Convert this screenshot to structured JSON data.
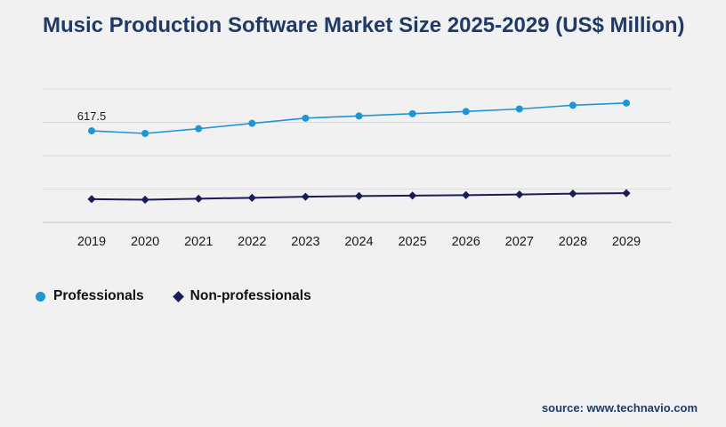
{
  "page": {
    "title": "Music Production Software Market Size 2025-2029 (US$ Million)",
    "source": "source: www.technavio.com"
  },
  "colors": {
    "background": "#f1f1f1",
    "title_text": "#1f3a68",
    "gridline": "#d9d9d9",
    "axis_line": "#c2c2c2",
    "axis_label_text": "#1a1a1a",
    "professionals": "#2095d3",
    "non_professionals": "#1b1c57"
  },
  "chart_data": {
    "type": "line",
    "title": "Music Production Software Market Size 2025-2029 (US$ Million)",
    "xlabel": "",
    "ylabel": "",
    "categories": [
      "2019",
      "2020",
      "2021",
      "2022",
      "2023",
      "2024",
      "2025",
      "2026",
      "2027",
      "2028",
      "2029"
    ],
    "series": [
      {
        "name": "Professionals",
        "color": "#2095d3",
        "marker": "circle",
        "values": [
          617.5,
          600,
          632,
          668,
          703,
          718,
          733,
          748,
          765,
          790,
          805
        ]
      },
      {
        "name": "Non-professionals",
        "color": "#1b1c57",
        "marker": "diamond",
        "values": [
          157,
          153,
          160,
          166,
          173,
          178,
          181,
          184,
          188,
          194,
          197
        ]
      }
    ],
    "ylim": [
      0,
      900
    ],
    "grid": true,
    "legend_position": "bottom-left",
    "annotations": [
      {
        "series": "Professionals",
        "index": 0,
        "text": "617.5"
      }
    ]
  }
}
